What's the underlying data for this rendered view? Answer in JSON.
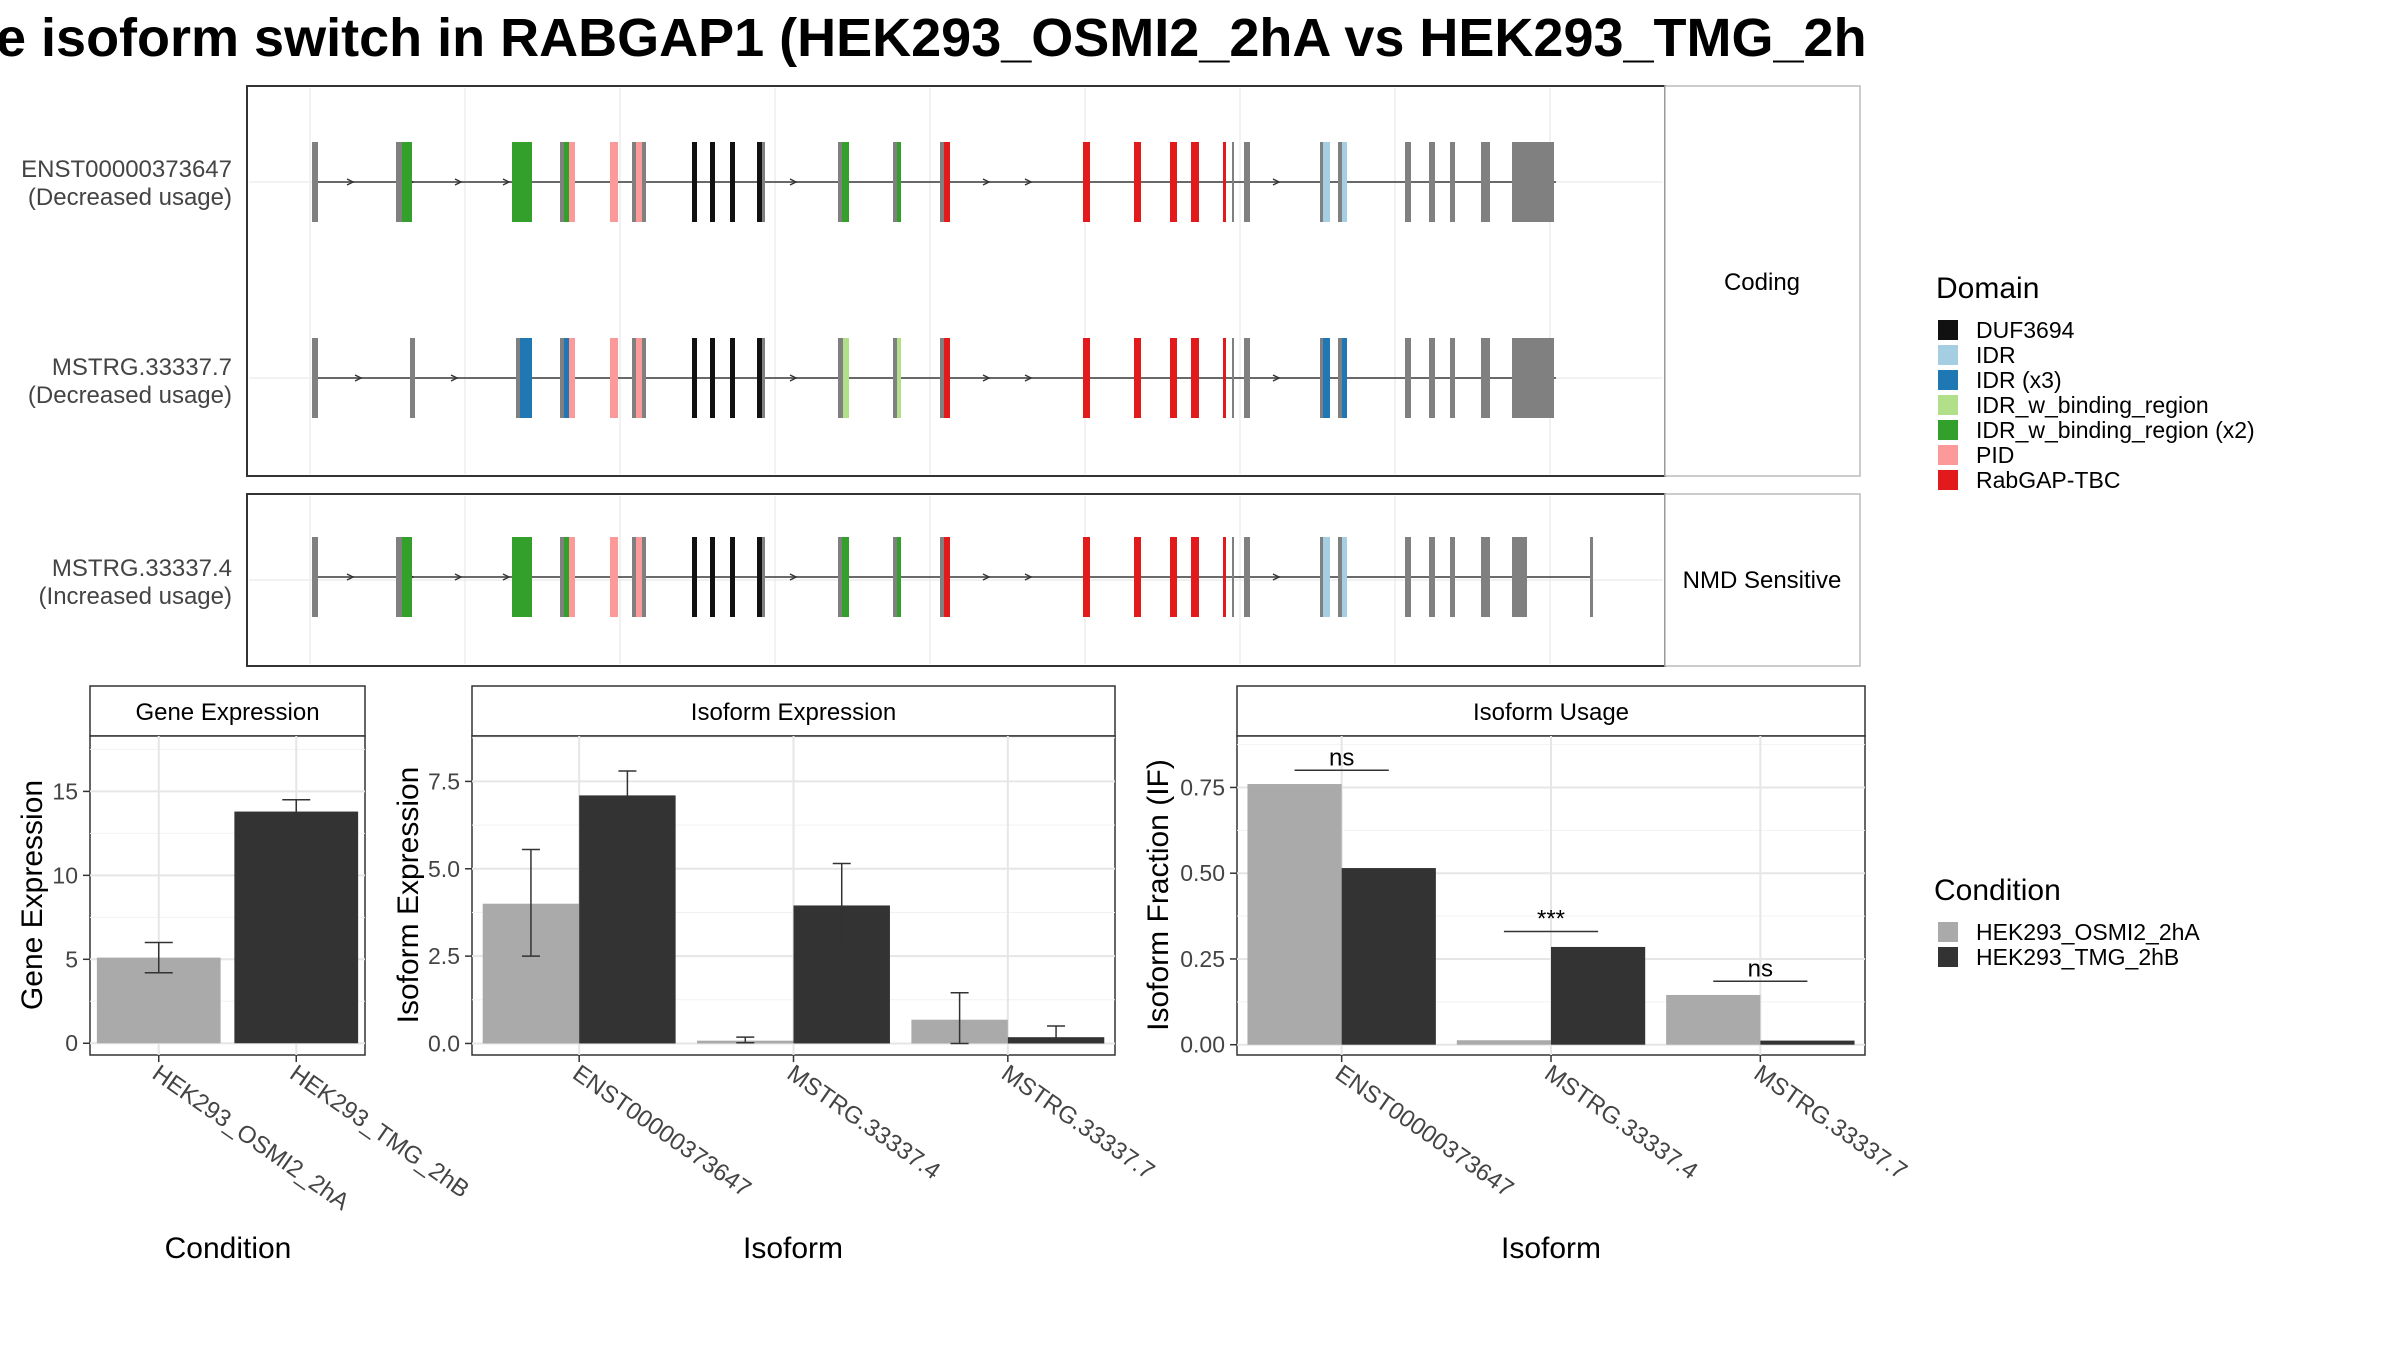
{
  "title": "e isoform switch in RABGAP1 (HEK293_OSMI2_2hA vs HEK293_TMG_2h",
  "colors": {
    "DUF3694": "#111111",
    "IDR": "#a6cee3",
    "IDR (x3)": "#1f78b4",
    "IDR_w_binding_region": "#b2df8a",
    "IDR_w_binding_region (x2)": "#33a02c",
    "PID": "#fb9a99",
    "RabGAP-TBC": "#e31a1c",
    "exon": "#808080",
    "cond_a": "#aaaaaa",
    "cond_b": "#333333"
  },
  "transcripts": {
    "facets": [
      "Coding",
      "NMD Sensitive"
    ],
    "rows": [
      {
        "id": "ENST00000373647",
        "usage": "(Decreased usage)",
        "facet": 0
      },
      {
        "id": "MSTRG.33337.7",
        "usage": "(Decreased usage)",
        "facet": 0
      },
      {
        "id": "MSTRG.33337.4",
        "usage": "(Increased usage)",
        "facet": 1
      }
    ]
  },
  "legend_domain": {
    "title": "Domain",
    "entries": [
      "DUF3694",
      "IDR",
      "IDR (x3)",
      "IDR_w_binding_region",
      "IDR_w_binding_region (x2)",
      "PID",
      "RabGAP-TBC"
    ]
  },
  "legend_condition": {
    "title": "Condition",
    "entries": [
      "HEK293_OSMI2_2hA",
      "HEK293_TMG_2hB"
    ]
  },
  "chart_data": [
    {
      "type": "bar",
      "title": "Gene Expression",
      "xlabel": "Condition",
      "ylabel": "Gene Expression",
      "categories": [
        "HEK293_OSMI2_2hA",
        "HEK293_TMG_2hB"
      ],
      "values": [
        5.1,
        13.8
      ],
      "err_low": [
        4.2,
        13.1
      ],
      "err_high": [
        6.0,
        14.5
      ],
      "ylim": [
        -0.7,
        18.3
      ],
      "yticks": [
        0,
        5,
        10,
        15
      ],
      "ytick_labels": [
        "0",
        "5",
        "10",
        "15"
      ]
    },
    {
      "type": "bar",
      "title": "Isoform Expression",
      "xlabel": "Isoform",
      "ylabel": "Isoform Expression",
      "categories": [
        "ENST00000373647",
        "MSTRG.33337.4",
        "MSTRG.33337.7"
      ],
      "series": [
        {
          "name": "HEK293_OSMI2_2hA",
          "values": [
            4.0,
            0.08,
            0.68
          ],
          "err_low": [
            2.5,
            0.02,
            0.0
          ],
          "err_high": [
            5.55,
            0.18,
            1.45
          ]
        },
        {
          "name": "HEK293_TMG_2hB",
          "values": [
            7.1,
            3.95,
            0.18
          ],
          "err_low": [
            6.45,
            2.75,
            0.05
          ],
          "err_high": [
            7.8,
            5.15,
            0.5
          ]
        }
      ],
      "ylim": [
        -0.33,
        8.8
      ],
      "yticks": [
        0,
        2.5,
        5,
        7.5
      ],
      "ytick_labels": [
        "0.0",
        "2.5",
        "5.0",
        "7.5"
      ]
    },
    {
      "type": "bar",
      "title": "Isoform Usage",
      "xlabel": "Isoform",
      "ylabel": "Isoform Fraction (IF)",
      "categories": [
        "ENST00000373647",
        "MSTRG.33337.4",
        "MSTRG.33337.7"
      ],
      "series": [
        {
          "name": "HEK293_OSMI2_2hA",
          "values": [
            0.76,
            0.013,
            0.145
          ]
        },
        {
          "name": "HEK293_TMG_2hB",
          "values": [
            0.515,
            0.285,
            0.012
          ]
        }
      ],
      "significance": [
        {
          "label": "ns",
          "y": 0.8
        },
        {
          "label": "***",
          "y": 0.33
        },
        {
          "label": "ns",
          "y": 0.185
        }
      ],
      "ylim": [
        -0.03,
        0.9
      ],
      "yticks": [
        0,
        0.25,
        0.5,
        0.75
      ],
      "ytick_labels": [
        "0.00",
        "0.25",
        "0.50",
        "0.75"
      ]
    }
  ]
}
